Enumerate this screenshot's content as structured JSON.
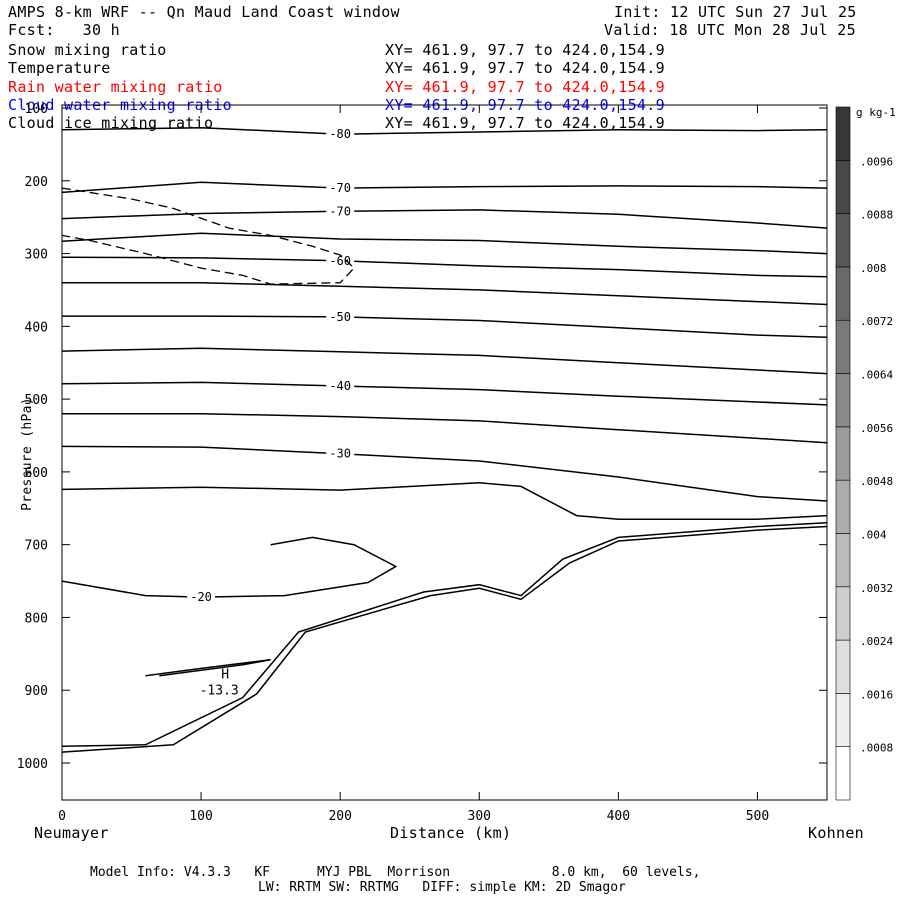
{
  "header": {
    "title": "AMPS 8-km WRF -- Qn Maud Land Coast window",
    "fcst": "Fcst:   30 h",
    "init": "Init: 12 UTC Sun 27 Jul 25",
    "valid": "Valid: 18 UTC Mon 28 Jul 25"
  },
  "fields": [
    {
      "name": "Snow mixing ratio",
      "xy": "XY= 461.9, 97.7 to 424.0,154.9",
      "color": "#000000"
    },
    {
      "name": "Temperature",
      "xy": "XY= 461.9, 97.7 to 424.0,154.9",
      "color": "#000000"
    },
    {
      "name": "Rain water mixing ratio",
      "xy": "XY= 461.9, 97.7 to 424.0,154.9",
      "color": "#ff0000"
    },
    {
      "name": "Cloud water mixing ratio",
      "xy": "XY= 461.9, 97.7 to 424.0,154.9",
      "color": "#0000ff"
    },
    {
      "name": "Cloud ice mixing ratio",
      "xy": "XY= 461.9, 97.7 to 424.0,154.9",
      "color": "#000000"
    }
  ],
  "footer": {
    "line1": "Model Info: V4.3.3   KF      MYJ PBL  Morrison             8.0 km,  60 levels,",
    "line2": "LW: RRTM SW: RRTMG   DIFF: simple KM: 2D Smagor"
  },
  "chart_data": {
    "type": "contour",
    "xlabel": "Distance (km)",
    "ylabel": "Pressure (hPa)",
    "x_left_label": "Neumayer",
    "x_right_label": "Kohnen",
    "xlim": [
      0,
      550
    ],
    "ylim": [
      1050,
      100
    ],
    "xticks": [
      "0",
      "100",
      "200",
      "300",
      "400",
      "500"
    ],
    "yticks": [
      "100",
      "200",
      "300",
      "400",
      "500",
      "600",
      "700",
      "800",
      "900",
      "1000"
    ],
    "colorbar": {
      "unit": "g kg-1",
      "levels": [
        ".0008",
        ".0016",
        ".0024",
        ".0032",
        ".004",
        ".0048",
        ".0056",
        ".0064",
        ".0072",
        ".008",
        ".0088",
        ".0096"
      ]
    },
    "temperature_contours": [
      {
        "label": "-80",
        "points": [
          [
            0,
            130
          ],
          [
            100,
            127
          ],
          [
            200,
            136
          ],
          [
            300,
            133
          ],
          [
            400,
            130
          ],
          [
            500,
            131
          ],
          [
            550,
            130
          ]
        ]
      },
      {
        "label": "-70",
        "points": [
          [
            0,
            216
          ],
          [
            100,
            202
          ],
          [
            200,
            210
          ],
          [
            300,
            208
          ],
          [
            400,
            207
          ],
          [
            500,
            208
          ],
          [
            550,
            210
          ]
        ]
      },
      {
        "label": "-70",
        "points": [
          [
            0,
            252
          ],
          [
            100,
            245
          ],
          [
            200,
            242
          ],
          [
            300,
            240
          ],
          [
            400,
            246
          ],
          [
            500,
            258
          ],
          [
            550,
            265
          ]
        ]
      },
      {
        "label": "",
        "points": [
          [
            0,
            283
          ],
          [
            100,
            272
          ],
          [
            200,
            280
          ],
          [
            300,
            282
          ],
          [
            400,
            290
          ],
          [
            500,
            296
          ],
          [
            550,
            300
          ]
        ]
      },
      {
        "label": "-60",
        "points": [
          [
            0,
            305
          ],
          [
            100,
            306
          ],
          [
            200,
            310
          ],
          [
            300,
            317
          ],
          [
            400,
            322
          ],
          [
            500,
            330
          ],
          [
            550,
            332
          ]
        ]
      },
      {
        "label": "",
        "points": [
          [
            0,
            340
          ],
          [
            100,
            340
          ],
          [
            200,
            345
          ],
          [
            300,
            350
          ],
          [
            400,
            358
          ],
          [
            500,
            366
          ],
          [
            550,
            370
          ]
        ]
      },
      {
        "label": "-50",
        "points": [
          [
            0,
            386
          ],
          [
            100,
            386
          ],
          [
            200,
            387
          ],
          [
            300,
            392
          ],
          [
            400,
            402
          ],
          [
            500,
            412
          ],
          [
            550,
            415
          ]
        ]
      },
      {
        "label": "",
        "points": [
          [
            0,
            434
          ],
          [
            100,
            430
          ],
          [
            200,
            435
          ],
          [
            300,
            440
          ],
          [
            400,
            450
          ],
          [
            500,
            460
          ],
          [
            550,
            465
          ]
        ]
      },
      {
        "label": "-40",
        "points": [
          [
            0,
            479
          ],
          [
            100,
            477
          ],
          [
            200,
            482
          ],
          [
            300,
            487
          ],
          [
            400,
            496
          ],
          [
            500,
            504
          ],
          [
            550,
            508
          ]
        ]
      },
      {
        "label": "",
        "points": [
          [
            0,
            520
          ],
          [
            100,
            520
          ],
          [
            200,
            524
          ],
          [
            300,
            530
          ],
          [
            400,
            542
          ],
          [
            500,
            554
          ],
          [
            550,
            560
          ]
        ]
      },
      {
        "label": "-30",
        "points": [
          [
            0,
            565
          ],
          [
            100,
            566
          ],
          [
            200,
            575
          ],
          [
            300,
            585
          ],
          [
            400,
            607
          ],
          [
            500,
            634
          ],
          [
            550,
            640
          ]
        ]
      },
      {
        "label": "",
        "points": [
          [
            0,
            624
          ],
          [
            100,
            621
          ],
          [
            200,
            625
          ],
          [
            300,
            615
          ],
          [
            330,
            620
          ],
          [
            370,
            660
          ],
          [
            400,
            665
          ],
          [
            500,
            665
          ],
          [
            550,
            660
          ]
        ]
      },
      {
        "label": "-20",
        "points": [
          [
            0,
            750
          ],
          [
            60,
            770
          ],
          [
            100,
            772
          ],
          [
            160,
            770
          ],
          [
            220,
            752
          ],
          [
            240,
            730
          ],
          [
            210,
            700
          ],
          [
            180,
            690
          ],
          [
            150,
            700
          ]
        ]
      },
      {
        "label": "",
        "points": [
          [
            70,
            880
          ],
          [
            130,
            865
          ],
          [
            150,
            858
          ],
          [
            100,
            870
          ],
          [
            60,
            880
          ]
        ]
      },
      {
        "label": "",
        "points": [
          [
            0,
            977
          ],
          [
            60,
            975
          ],
          [
            130,
            910
          ],
          [
            170,
            820
          ],
          [
            260,
            765
          ],
          [
            300,
            755
          ],
          [
            330,
            770
          ],
          [
            360,
            720
          ],
          [
            400,
            690
          ],
          [
            500,
            675
          ],
          [
            550,
            670
          ]
        ]
      },
      {
        "label": "",
        "points": [
          [
            0,
            985
          ],
          [
            80,
            975
          ],
          [
            140,
            905
          ],
          [
            175,
            820
          ],
          [
            265,
            770
          ],
          [
            300,
            760
          ],
          [
            330,
            775
          ],
          [
            365,
            725
          ],
          [
            400,
            695
          ],
          [
            500,
            680
          ],
          [
            550,
            675
          ]
        ]
      }
    ],
    "maximum": {
      "label": "H",
      "value": "-13.3",
      "x": 113,
      "y": 895
    },
    "snow_contour_dashed": [
      [
        0,
        210
      ],
      [
        50,
        225
      ],
      [
        80,
        238
      ],
      [
        120,
        265
      ],
      [
        150,
        275
      ],
      [
        180,
        290
      ],
      [
        200,
        302
      ],
      [
        210,
        320
      ],
      [
        200,
        340
      ],
      [
        150,
        342
      ],
      [
        130,
        330
      ],
      [
        100,
        320
      ],
      [
        60,
        300
      ],
      [
        20,
        282
      ],
      [
        0,
        275
      ]
    ]
  }
}
